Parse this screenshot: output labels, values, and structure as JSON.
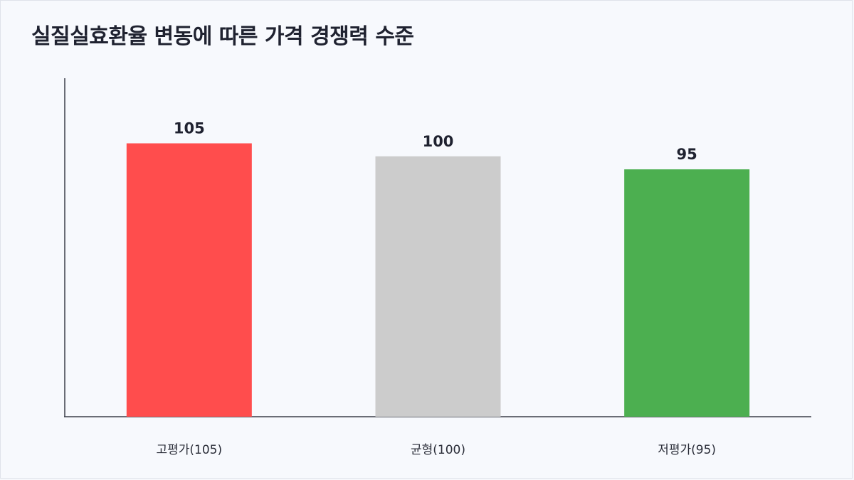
{
  "chart_data": {
    "type": "bar",
    "title": "실질실효환율 변동에 따른 가격 경쟁력 수준",
    "categories": [
      "고평가(105)",
      "균형(100)",
      "저평가(95)"
    ],
    "values": [
      105,
      100,
      95
    ],
    "value_labels": [
      "105",
      "100",
      "95"
    ],
    "colors": [
      "#ff4d4d",
      "#cccccc",
      "#4caf50"
    ],
    "xlabel": "",
    "ylabel": "",
    "ylim": [
      0,
      130
    ],
    "grid": false,
    "legend": "none"
  }
}
